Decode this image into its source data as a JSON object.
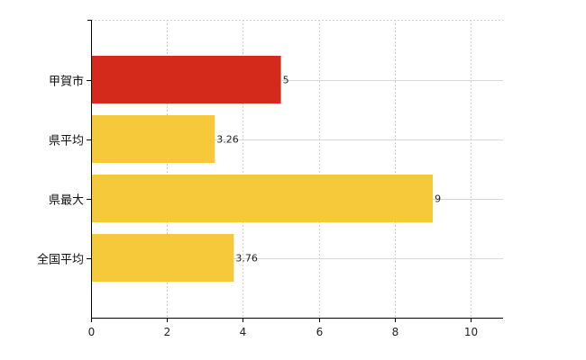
{
  "chart_data": {
    "type": "bar",
    "orientation": "horizontal",
    "categories": [
      "甲賀市",
      "県平均",
      "県最大",
      "全国平均"
    ],
    "values": [
      5,
      3.26,
      9,
      3.76
    ],
    "value_labels": [
      "5",
      "3.26",
      "9",
      "3.76"
    ],
    "colors": [
      "#d42a1c",
      "#f6c93b",
      "#f6c93b",
      "#f6c93b"
    ],
    "xlim": [
      0,
      10.85
    ],
    "xticks": [
      0,
      2,
      4,
      6,
      8,
      10
    ],
    "xtick_labels": [
      "0",
      "2",
      "4",
      "6",
      "8",
      "10"
    ],
    "grid": true,
    "title": "",
    "xlabel": "",
    "ylabel": ""
  }
}
